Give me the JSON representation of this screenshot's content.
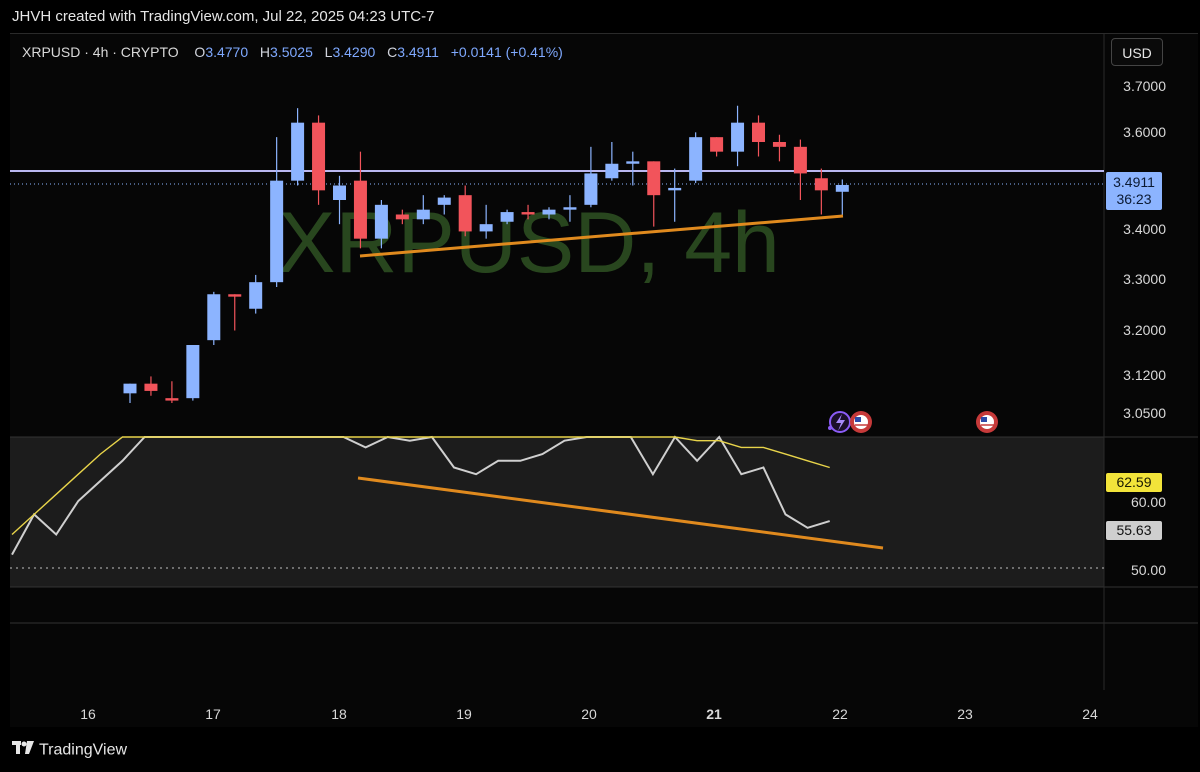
{
  "header": {
    "creator_text": "JHVH created with TradingView.com, Jul 22, 2025 04:23 UTC-7"
  },
  "legend": {
    "symbol": "XRPUSD · 4h · CRYPTO",
    "open_label": "O",
    "open": "3.4770",
    "high_label": "H",
    "high": "3.5025",
    "low_label": "L",
    "low": "3.4290",
    "close_label": "C",
    "close": "3.4911",
    "change": "+0.0141 (+0.41%)"
  },
  "currency_button": "USD",
  "watermark": "XRPUSD, 4h",
  "price_badge": {
    "price": "3.4911",
    "countdown": "36:23"
  },
  "rsi_badges": {
    "ma": "62.59",
    "rsi": "55.63"
  },
  "footer": {
    "brand": "TradingView"
  },
  "colors": {
    "up": "#8cb4ff",
    "down": "#f2545b",
    "trendline": "#e08a1e",
    "rsi_ma": "#e8d44a",
    "rsi": "#cfcfcf",
    "hline": "#b9b7f0"
  },
  "chart_data": [
    {
      "type": "candlestick",
      "symbol": "XRPUSD",
      "interval": "4h",
      "y_ticks": [
        "3.7000",
        "3.6000",
        "3.4000",
        "3.3000",
        "3.2000",
        "3.1200",
        "3.0500"
      ],
      "x_ticks": [
        "16",
        "17",
        "18",
        "19",
        "20",
        "21",
        "22",
        "23",
        "24"
      ],
      "horizontal_line": 3.52,
      "current_price": 3.4911,
      "candles": [
        {
          "o": 3.06,
          "h": 3.08,
          "l": 3.04,
          "c": 3.08
        },
        {
          "o": 3.08,
          "h": 3.095,
          "l": 3.055,
          "c": 3.065
        },
        {
          "o": 3.05,
          "h": 3.085,
          "l": 3.04,
          "c": 3.045
        },
        {
          "o": 3.05,
          "h": 3.16,
          "l": 3.045,
          "c": 3.16
        },
        {
          "o": 3.17,
          "h": 3.27,
          "l": 3.16,
          "c": 3.265
        },
        {
          "o": 3.265,
          "h": 3.265,
          "l": 3.19,
          "c": 3.26
        },
        {
          "o": 3.235,
          "h": 3.305,
          "l": 3.225,
          "c": 3.29
        },
        {
          "o": 3.29,
          "h": 3.59,
          "l": 3.28,
          "c": 3.5
        },
        {
          "o": 3.5,
          "h": 3.65,
          "l": 3.49,
          "c": 3.62
        },
        {
          "o": 3.62,
          "h": 3.635,
          "l": 3.45,
          "c": 3.48
        },
        {
          "o": 3.46,
          "h": 3.51,
          "l": 3.41,
          "c": 3.49
        },
        {
          "o": 3.5,
          "h": 3.56,
          "l": 3.36,
          "c": 3.38
        },
        {
          "o": 3.38,
          "h": 3.46,
          "l": 3.36,
          "c": 3.45
        },
        {
          "o": 3.43,
          "h": 3.44,
          "l": 3.41,
          "c": 3.42
        },
        {
          "o": 3.42,
          "h": 3.47,
          "l": 3.41,
          "c": 3.44
        },
        {
          "o": 3.45,
          "h": 3.47,
          "l": 3.43,
          "c": 3.465
        },
        {
          "o": 3.47,
          "h": 3.49,
          "l": 3.385,
          "c": 3.395
        },
        {
          "o": 3.395,
          "h": 3.45,
          "l": 3.38,
          "c": 3.41
        },
        {
          "o": 3.415,
          "h": 3.44,
          "l": 3.41,
          "c": 3.435
        },
        {
          "o": 3.435,
          "h": 3.45,
          "l": 3.42,
          "c": 3.43
        },
        {
          "o": 3.43,
          "h": 3.445,
          "l": 3.42,
          "c": 3.44
        },
        {
          "o": 3.44,
          "h": 3.47,
          "l": 3.415,
          "c": 3.445
        },
        {
          "o": 3.45,
          "h": 3.57,
          "l": 3.445,
          "c": 3.515
        },
        {
          "o": 3.505,
          "h": 3.58,
          "l": 3.5,
          "c": 3.535
        },
        {
          "o": 3.535,
          "h": 3.56,
          "l": 3.49,
          "c": 3.54
        },
        {
          "o": 3.54,
          "h": 3.54,
          "l": 3.405,
          "c": 3.47
        },
        {
          "o": 3.48,
          "h": 3.525,
          "l": 3.415,
          "c": 3.485
        },
        {
          "o": 3.5,
          "h": 3.6,
          "l": 3.495,
          "c": 3.59
        },
        {
          "o": 3.59,
          "h": 3.59,
          "l": 3.55,
          "c": 3.56
        },
        {
          "o": 3.56,
          "h": 3.655,
          "l": 3.53,
          "c": 3.62
        },
        {
          "o": 3.62,
          "h": 3.635,
          "l": 3.55,
          "c": 3.58
        },
        {
          "o": 3.58,
          "h": 3.595,
          "l": 3.54,
          "c": 3.57
        },
        {
          "o": 3.57,
          "h": 3.585,
          "l": 3.46,
          "c": 3.515
        },
        {
          "o": 3.505,
          "h": 3.525,
          "l": 3.43,
          "c": 3.48
        },
        {
          "o": 3.477,
          "h": 3.5025,
          "l": 3.429,
          "c": 3.4911
        }
      ]
    },
    {
      "type": "line",
      "name": "RSI",
      "y_ticks": [
        "60.00",
        "50.00"
      ],
      "series": [
        {
          "values": [
            52,
            58,
            55,
            60,
            63,
            66,
            72,
            78,
            74,
            72,
            80,
            86,
            88,
            86,
            80,
            72,
            68,
            70,
            69,
            71,
            65,
            64,
            66,
            66,
            67,
            69,
            75,
            76,
            77,
            64,
            71,
            66,
            75,
            64,
            65,
            58,
            56,
            57
          ]
        },
        {
          "values": [
            55,
            58,
            61,
            64,
            67,
            70,
            72,
            73,
            73,
            72,
            75,
            79,
            83,
            86,
            86,
            86,
            84,
            82,
            80,
            78,
            76,
            74,
            73,
            72,
            72,
            72,
            71,
            71,
            71,
            70,
            70,
            69,
            69,
            68,
            68,
            67,
            66,
            65
          ]
        }
      ]
    }
  ]
}
